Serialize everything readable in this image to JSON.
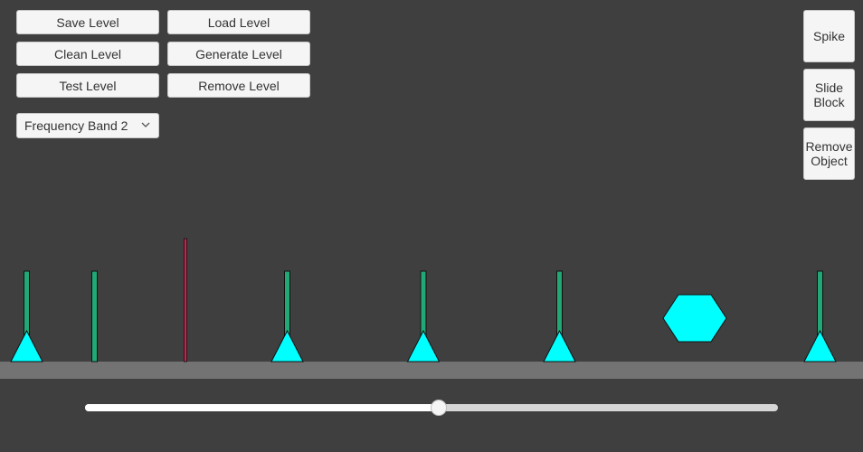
{
  "toolbar": {
    "save_label": "Save Level",
    "load_label": "Load Level",
    "clean_label": "Clean Level",
    "generate_label": "Generate Level",
    "test_label": "Test Level",
    "remove_label": "Remove Level"
  },
  "band_select": {
    "value": "Frequency Band 2",
    "icon": "chevron-down-icon"
  },
  "side_panel": {
    "spike_label": "Spike",
    "slide_block_label": "Slide\nBlock",
    "remove_object_label": "Remove\nObject"
  },
  "level": {
    "colors": {
      "background": "#3f3f3f",
      "ground": "#737373",
      "spike": "#00ffff",
      "marker_green": "#21a876",
      "playhead": "#d81b4c"
    },
    "markers": [
      {
        "kind": "spike",
        "has_spike": true
      },
      {
        "kind": "marker",
        "has_spike": false
      },
      {
        "kind": "playhead",
        "has_spike": false
      },
      {
        "kind": "spike",
        "has_spike": true
      },
      {
        "kind": "spike",
        "has_spike": true
      },
      {
        "kind": "spike",
        "has_spike": true
      },
      {
        "kind": "slide-block",
        "has_spike": false
      },
      {
        "kind": "spike",
        "has_spike": true
      }
    ]
  },
  "timeline": {
    "position": 0.51
  }
}
